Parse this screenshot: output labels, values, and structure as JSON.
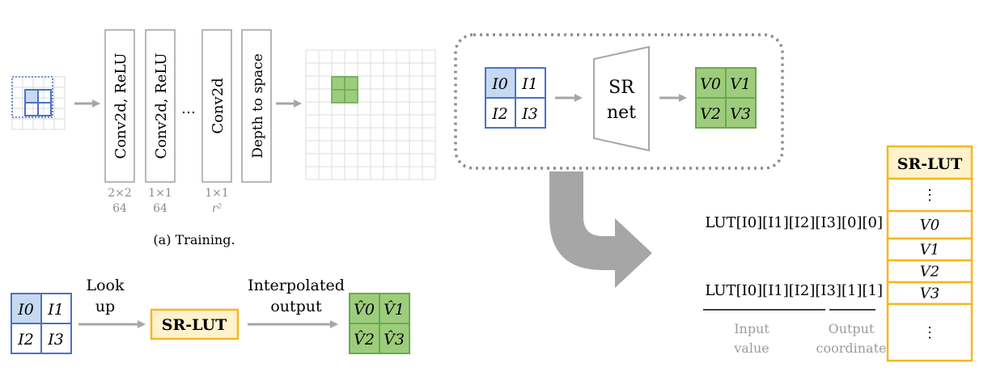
{
  "training": {
    "layers": [
      {
        "label": "Conv2d, ReLU",
        "kernel": "2×2",
        "channels": "64"
      },
      {
        "label": "Conv2d, ReLU",
        "kernel": "1×1",
        "channels": "64"
      },
      {
        "label": "Conv2d",
        "kernel": "1×1",
        "channels": "r²"
      },
      {
        "label": "Depth to space",
        "kernel": "",
        "channels": ""
      }
    ],
    "ellipsis": "…",
    "caption": "(a) Training."
  },
  "sr_box": {
    "inputs": [
      "I0",
      "I1",
      "I2",
      "I3"
    ],
    "net_line1": "SR",
    "net_line2": "net",
    "outputs": [
      "V0",
      "V1",
      "V2",
      "V3"
    ]
  },
  "lut_table": {
    "header": "SR-LUT",
    "rows": [
      "⋮",
      "V0",
      "V1",
      "V2",
      "V3",
      "⋮"
    ]
  },
  "lut_index": {
    "row_first": "LUT[I0][I1][I2][I3][0][0]",
    "row_last": "LUT[I0][I1][I2][I3][1][1]",
    "brace_input": "Input value",
    "brace_output": "Output coordinate"
  },
  "testing": {
    "inputs": [
      "I0",
      "I1",
      "I2",
      "I3"
    ],
    "step1_line1": "Look",
    "step1_line2": "up",
    "lut_label": "SR-LUT",
    "step2_line1": "Interpolated",
    "step2_line2": "output",
    "outputs": [
      "V̂0",
      "V̂1",
      "V̂2",
      "V̂3"
    ]
  },
  "colors": {
    "blue": "#4a72c4",
    "blue_fill": "#c6d9f0",
    "green_fill": "#9dcd7c",
    "green_stroke": "#6aa84f",
    "yellow_stroke": "#f5b820",
    "yellow_fill": "#fff2cc",
    "gray": "#a6a6a6"
  }
}
